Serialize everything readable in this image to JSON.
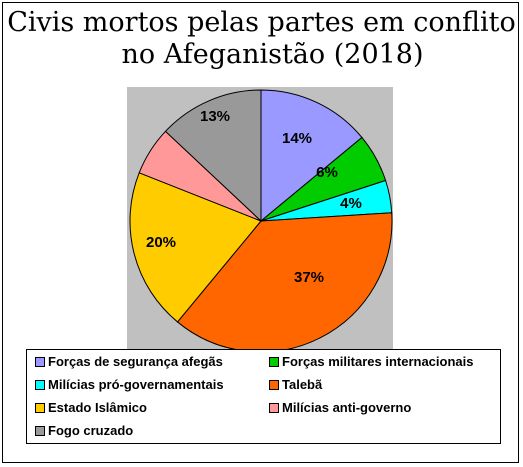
{
  "chart_data": {
    "type": "pie",
    "title": "Civis mortos pelas partes em conflito no Afeganistão (2018)",
    "title_lines": [
      "Civis mortos pelas partes em conflito",
      "no Afeganistão (2018)"
    ],
    "slices": [
      {
        "label": "Forças de segurança afegãs",
        "value": 14,
        "display": "14%",
        "color": "#9999ff"
      },
      {
        "label": "Forças militares internacionais",
        "value": 6,
        "display": "6%",
        "color": "#00cc00"
      },
      {
        "label": "Milícias pró-governamentais",
        "value": 4,
        "display": "4%",
        "color": "#00ffff"
      },
      {
        "label": "Talebã",
        "value": 37,
        "display": "37%",
        "color": "#ff6600"
      },
      {
        "label": "Estado Islâmico",
        "value": 20,
        "display": "20%",
        "color": "#ffcc00"
      },
      {
        "label": "Milícias anti-governo",
        "value": 6,
        "display": "",
        "color": "#ff9999"
      },
      {
        "label": "Fogo cruzado",
        "value": 13,
        "display": "13%",
        "color": "#999999"
      }
    ],
    "legend_position": "bottom",
    "plot_background": "#c0c0c0"
  }
}
